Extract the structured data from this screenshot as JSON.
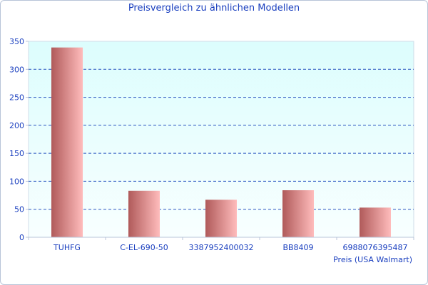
{
  "chart_data": {
    "type": "bar",
    "title": "Preisvergleich zu ähnlichen Modellen",
    "xlabel": "Preis (USA Walmart)",
    "ylabel": "",
    "categories": [
      "TUHFG",
      "C-EL-690-50",
      "3387952400032",
      "BB8409",
      "6988076395487"
    ],
    "values": [
      339,
      83,
      67,
      84,
      53
    ],
    "ylim": [
      0,
      350
    ],
    "yticks": [
      0,
      50,
      100,
      150,
      200,
      250,
      300,
      350
    ],
    "grid": true,
    "colors": {
      "bar_dark": "#b05a5a",
      "bar_light": "#ffbcbc",
      "grid": "#2a55c0",
      "plot_top": "#dcfdfd",
      "plot_bottom": "#f8ffff",
      "text": "#1a3fbf"
    }
  }
}
